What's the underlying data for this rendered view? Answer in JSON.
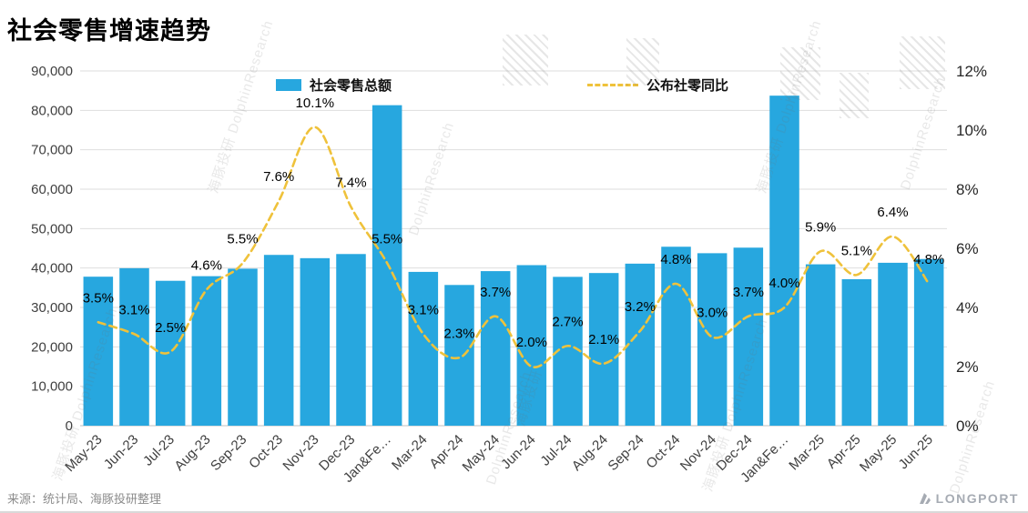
{
  "title": "社会零售增速趋势",
  "legend": {
    "bar_label": "社会零售总额",
    "line_label": "公布社零同比"
  },
  "source": "来源：统计局、海豚投研整理",
  "brand": "LONGPORT",
  "watermark": {
    "cn": "海豚投研",
    "en": "DolphinResearch"
  },
  "chart_data": {
    "type": "bar",
    "subtype": "bar+line combo, dual axis",
    "title": "社会零售增速趋势",
    "grid": true,
    "legend_position": "top",
    "categories": [
      "May-23",
      "Jun-23",
      "Jul-23",
      "Aug-23",
      "Sep-23",
      "Oct-23",
      "Nov-23",
      "Dec-23",
      "Jan&Fe…",
      "Mar-24",
      "Apr-24",
      "May-24",
      "Jun-24",
      "Jul-24",
      "Aug-24",
      "Sep-24",
      "Oct-24",
      "Nov-24",
      "Dec-24",
      "Jan&Fe…",
      "Mar-25",
      "Apr-25",
      "May-25",
      "Jun-25"
    ],
    "series": [
      {
        "name": "社会零售总额",
        "type": "bar",
        "axis": "left",
        "values": [
          37800,
          39950,
          36760,
          37930,
          39830,
          43330,
          42500,
          43550,
          81310,
          39020,
          35700,
          39210,
          40730,
          37760,
          38730,
          41110,
          45400,
          43760,
          45170,
          83730,
          40940,
          37170,
          41330,
          42290
        ]
      },
      {
        "name": "公布社零同比",
        "type": "line",
        "axis": "right",
        "style": "dashed",
        "values": [
          3.5,
          3.1,
          2.5,
          4.6,
          5.5,
          7.6,
          10.1,
          7.4,
          5.5,
          3.1,
          2.3,
          3.7,
          2.0,
          2.7,
          2.1,
          3.2,
          4.8,
          3.0,
          3.7,
          4.0,
          5.9,
          5.1,
          6.4,
          4.8
        ]
      }
    ],
    "left_axis": {
      "min": 0,
      "max": 90000,
      "step": 10000,
      "tick_labels": [
        "0",
        "10,000",
        "20,000",
        "30,000",
        "40,000",
        "50,000",
        "60,000",
        "70,000",
        "80,000",
        "90,000"
      ]
    },
    "right_axis": {
      "min": 0,
      "max": 12,
      "step": 2,
      "tick_labels": [
        "0%",
        "2%",
        "4%",
        "6%",
        "8%",
        "10%",
        "12%"
      ]
    },
    "colors": {
      "bar": "#27A7DF",
      "line": "#EFC23B",
      "grid": "#DEDEDE",
      "axis_line": "#BFBFBF",
      "axis_text": "#404040",
      "data_label": "#000000"
    }
  }
}
